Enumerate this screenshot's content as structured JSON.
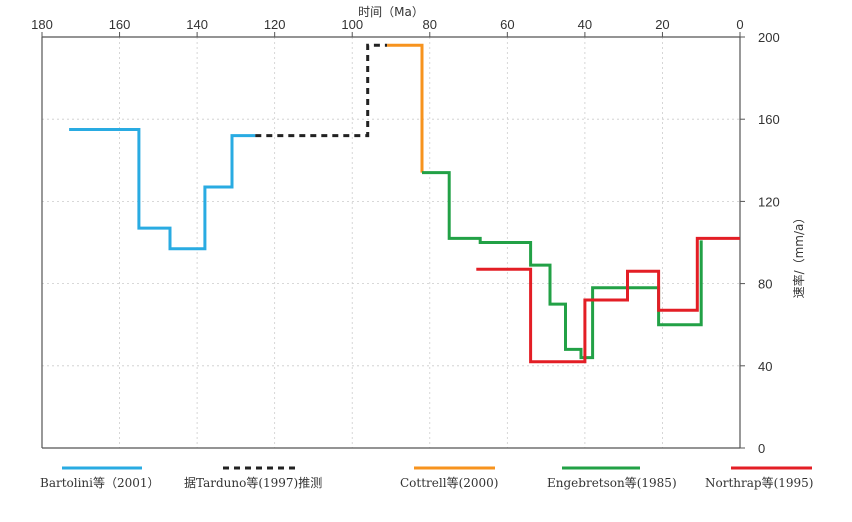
{
  "chart_data": {
    "type": "line",
    "step": true,
    "xlabel": "时间（Ma）",
    "ylabel": "速率/（mm/a）",
    "xlim": [
      180,
      0
    ],
    "ylim": [
      0,
      200
    ],
    "x_ticks": [
      180,
      160,
      140,
      120,
      100,
      80,
      60,
      40,
      20,
      0
    ],
    "y_ticks": [
      0,
      40,
      80,
      120,
      160,
      200
    ],
    "x_axis_position": "top",
    "y_axis_position": "right",
    "grid": true,
    "legend_position": "bottom",
    "series": [
      {
        "name": "Bartolini等（2001）",
        "color": "#29abe2",
        "dashed": false,
        "points": [
          [
            173,
            155
          ],
          [
            155,
            155
          ],
          [
            155,
            107
          ],
          [
            147,
            107
          ],
          [
            147,
            97
          ],
          [
            138,
            97
          ],
          [
            138,
            127
          ],
          [
            131,
            127
          ],
          [
            131,
            152
          ],
          [
            125,
            152
          ]
        ]
      },
      {
        "name": "据Tarduno等(1997)推测",
        "color": "#222222",
        "dashed": true,
        "points": [
          [
            125,
            152
          ],
          [
            96,
            152
          ],
          [
            96,
            196
          ],
          [
            91,
            196
          ]
        ]
      },
      {
        "name": "Cottrell等(2000)",
        "color": "#f7931e",
        "dashed": false,
        "points": [
          [
            91,
            196
          ],
          [
            82,
            196
          ],
          [
            82,
            134
          ]
        ]
      },
      {
        "name": "Engebretson等(1985)",
        "color": "#22a146",
        "dashed": false,
        "points": [
          [
            82,
            134
          ],
          [
            75,
            134
          ],
          [
            75,
            102
          ],
          [
            67,
            102
          ],
          [
            67,
            100
          ],
          [
            54,
            100
          ],
          [
            54,
            89
          ],
          [
            49,
            89
          ],
          [
            49,
            70
          ],
          [
            45,
            70
          ],
          [
            45,
            48
          ],
          [
            41,
            48
          ],
          [
            41,
            44
          ],
          [
            38,
            44
          ],
          [
            38,
            78
          ],
          [
            21,
            78
          ],
          [
            21,
            60
          ],
          [
            10,
            60
          ],
          [
            10,
            101
          ]
        ]
      },
      {
        "name": "Northrap等(1995)",
        "color": "#e31e25",
        "dashed": false,
        "points": [
          [
            68,
            87
          ],
          [
            54,
            87
          ],
          [
            54,
            42
          ],
          [
            40,
            42
          ],
          [
            40,
            72
          ],
          [
            29,
            72
          ],
          [
            29,
            86
          ],
          [
            21,
            86
          ],
          [
            21,
            67
          ],
          [
            11,
            67
          ],
          [
            11,
            102
          ],
          [
            0,
            102
          ]
        ]
      }
    ]
  }
}
